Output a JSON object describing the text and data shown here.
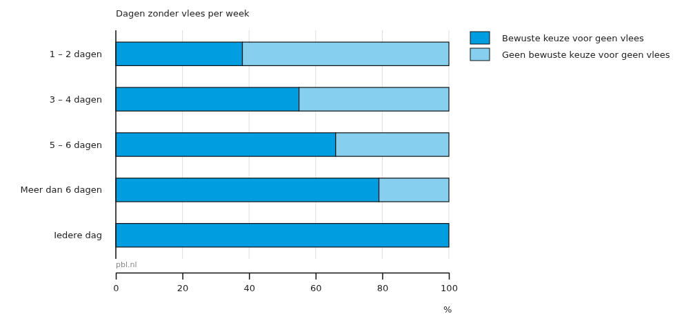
{
  "chart_data": {
    "type": "bar",
    "orientation": "horizontal",
    "stacked": true,
    "title": "Dagen zonder vlees per week",
    "xlabel": "%",
    "categories": [
      "1 – 2 dagen",
      "3 – 4 dagen",
      "5 – 6 dagen",
      "Meer dan 6 dagen",
      "Iedere dag"
    ],
    "series": [
      {
        "name": "Bewuste keuze voor geen vlees",
        "color": "#009ee0",
        "values": [
          38,
          55,
          66,
          79,
          100
        ]
      },
      {
        "name": "Geen bewuste keuze voor geen vlees",
        "color": "#87cfef",
        "values": [
          62,
          45,
          34,
          21,
          0
        ]
      }
    ],
    "xlim": [
      0,
      100
    ],
    "xticks": [
      0,
      20,
      40,
      60,
      80,
      100
    ],
    "grid": "x",
    "legend": "top right",
    "annotations": [
      "pbl.nl"
    ]
  }
}
